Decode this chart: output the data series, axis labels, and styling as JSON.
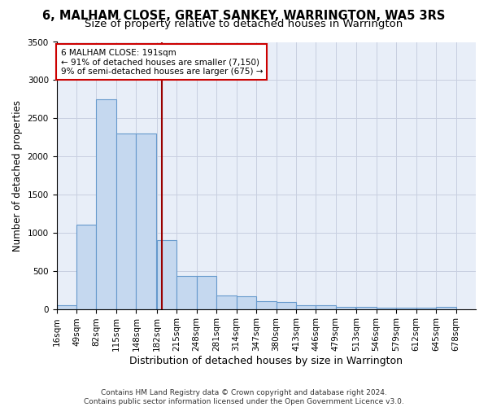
{
  "title": "6, MALHAM CLOSE, GREAT SANKEY, WARRINGTON, WA5 3RS",
  "subtitle": "Size of property relative to detached houses in Warrington",
  "xlabel": "Distribution of detached houses by size in Warrington",
  "ylabel": "Number of detached properties",
  "bin_edges": [
    16,
    49,
    82,
    115,
    148,
    182,
    215,
    248,
    281,
    314,
    347,
    380,
    413,
    446,
    479,
    513,
    546,
    579,
    612,
    645,
    678
  ],
  "bar_heights": [
    50,
    1100,
    2750,
    2300,
    2300,
    900,
    430,
    430,
    175,
    165,
    100,
    95,
    50,
    45,
    30,
    28,
    20,
    18,
    16,
    30
  ],
  "bar_color": "#c5d8ef",
  "bar_edge_color": "#6699cc",
  "grid_color": "#c8cfe0",
  "background_color": "#e8eef8",
  "vline_x": 191,
  "vline_color": "#990000",
  "annotation_text": "6 MALHAM CLOSE: 191sqm\n← 91% of detached houses are smaller (7,150)\n9% of semi-detached houses are larger (675) →",
  "annotation_box_color": "#ffffff",
  "annotation_border_color": "#cc0000",
  "ylim": [
    0,
    3500
  ],
  "yticks": [
    0,
    500,
    1000,
    1500,
    2000,
    2500,
    3000,
    3500
  ],
  "title_fontsize": 10.5,
  "subtitle_fontsize": 9.5,
  "xlabel_fontsize": 9,
  "ylabel_fontsize": 8.5,
  "tick_fontsize": 7.5,
  "annot_fontsize": 7.5,
  "footnote": "Contains HM Land Registry data © Crown copyright and database right 2024.\nContains public sector information licensed under the Open Government Licence v3.0.",
  "footnote_fontsize": 6.5
}
